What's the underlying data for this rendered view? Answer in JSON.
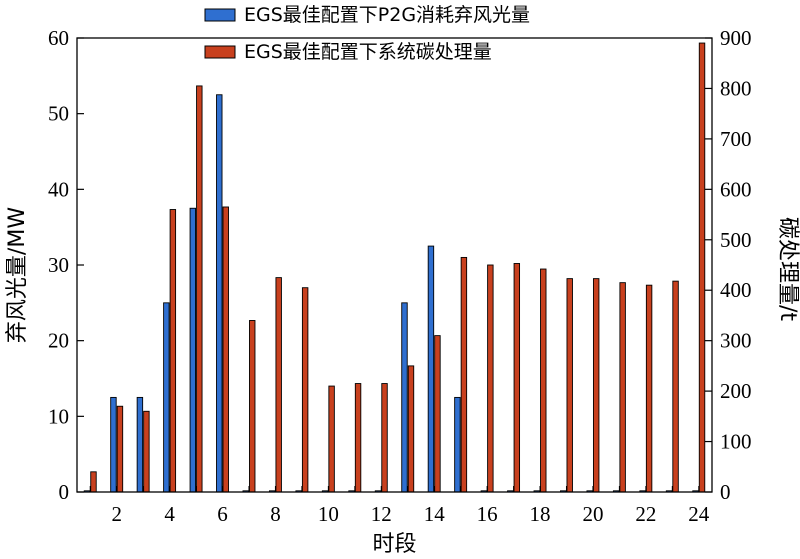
{
  "chart_data": {
    "type": "bar",
    "title": "",
    "xlabel": "时段",
    "ylabel_left": "弃风光量/MW",
    "ylabel_right": "碳处理量/t",
    "categories": [
      1,
      2,
      3,
      4,
      5,
      6,
      7,
      8,
      9,
      10,
      11,
      12,
      13,
      14,
      15,
      16,
      17,
      18,
      19,
      20,
      21,
      22,
      23,
      24
    ],
    "x_tick_labels": [
      "2",
      "4",
      "6",
      "8",
      "10",
      "12",
      "14",
      "16",
      "18",
      "20",
      "22",
      "24"
    ],
    "ylim_left": [
      0,
      60
    ],
    "y_ticks_left": [
      "0",
      "10",
      "20",
      "30",
      "40",
      "50",
      "60"
    ],
    "ylim_right": [
      0,
      900
    ],
    "y_ticks_right": [
      "0",
      "100",
      "200",
      "300",
      "400",
      "500",
      "600",
      "700",
      "800",
      "900"
    ],
    "grid": false,
    "legend_position": "top-center",
    "series": [
      {
        "name": "EGS最佳配置下P2G消耗弃风光量",
        "axis": "left",
        "color": "#2f6fd0",
        "values": [
          0,
          12.5,
          12.5,
          25,
          37.5,
          52.5,
          0,
          0,
          0,
          0,
          0,
          0,
          25,
          32.5,
          12.5,
          0,
          0,
          0,
          0,
          0,
          0,
          0,
          0,
          0
        ]
      },
      {
        "name": "EGS最佳配置下系统碳处理量",
        "axis": "right",
        "color": "#c8401e",
        "values": [
          40,
          170,
          160,
          560,
          805,
          565,
          340,
          425,
          405,
          210,
          215,
          215,
          250,
          310,
          465,
          450,
          453,
          442,
          423,
          423,
          415,
          410,
          418,
          890
        ]
      }
    ]
  }
}
